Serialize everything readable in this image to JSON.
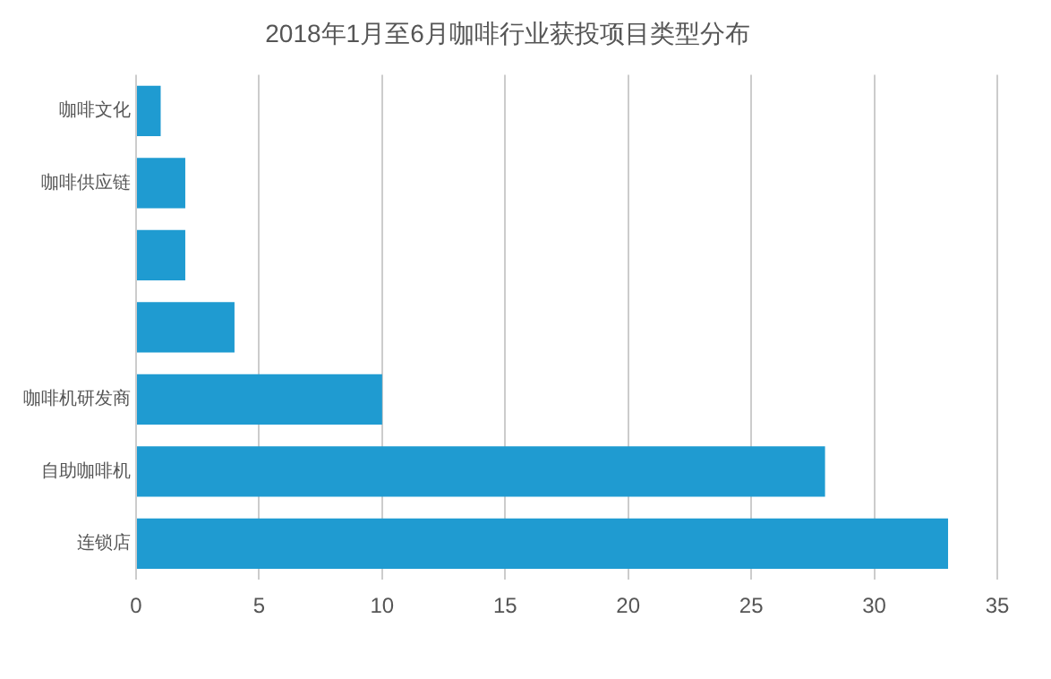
{
  "chart_data": {
    "type": "bar",
    "orientation": "horizontal",
    "title": "2018年1月至6月咖啡行业获投项目类型分布",
    "categories": [
      "咖啡文化",
      "咖啡供应链",
      null,
      null,
      "咖啡机研发商",
      "自助咖啡机",
      "连锁店"
    ],
    "values": [
      1,
      2,
      2,
      4,
      10,
      28,
      33
    ],
    "color": "#1f9bd1",
    "xlim": [
      0,
      35
    ],
    "xticks": [
      0,
      5,
      10,
      15,
      20,
      25,
      30,
      35
    ],
    "grid": "x"
  }
}
